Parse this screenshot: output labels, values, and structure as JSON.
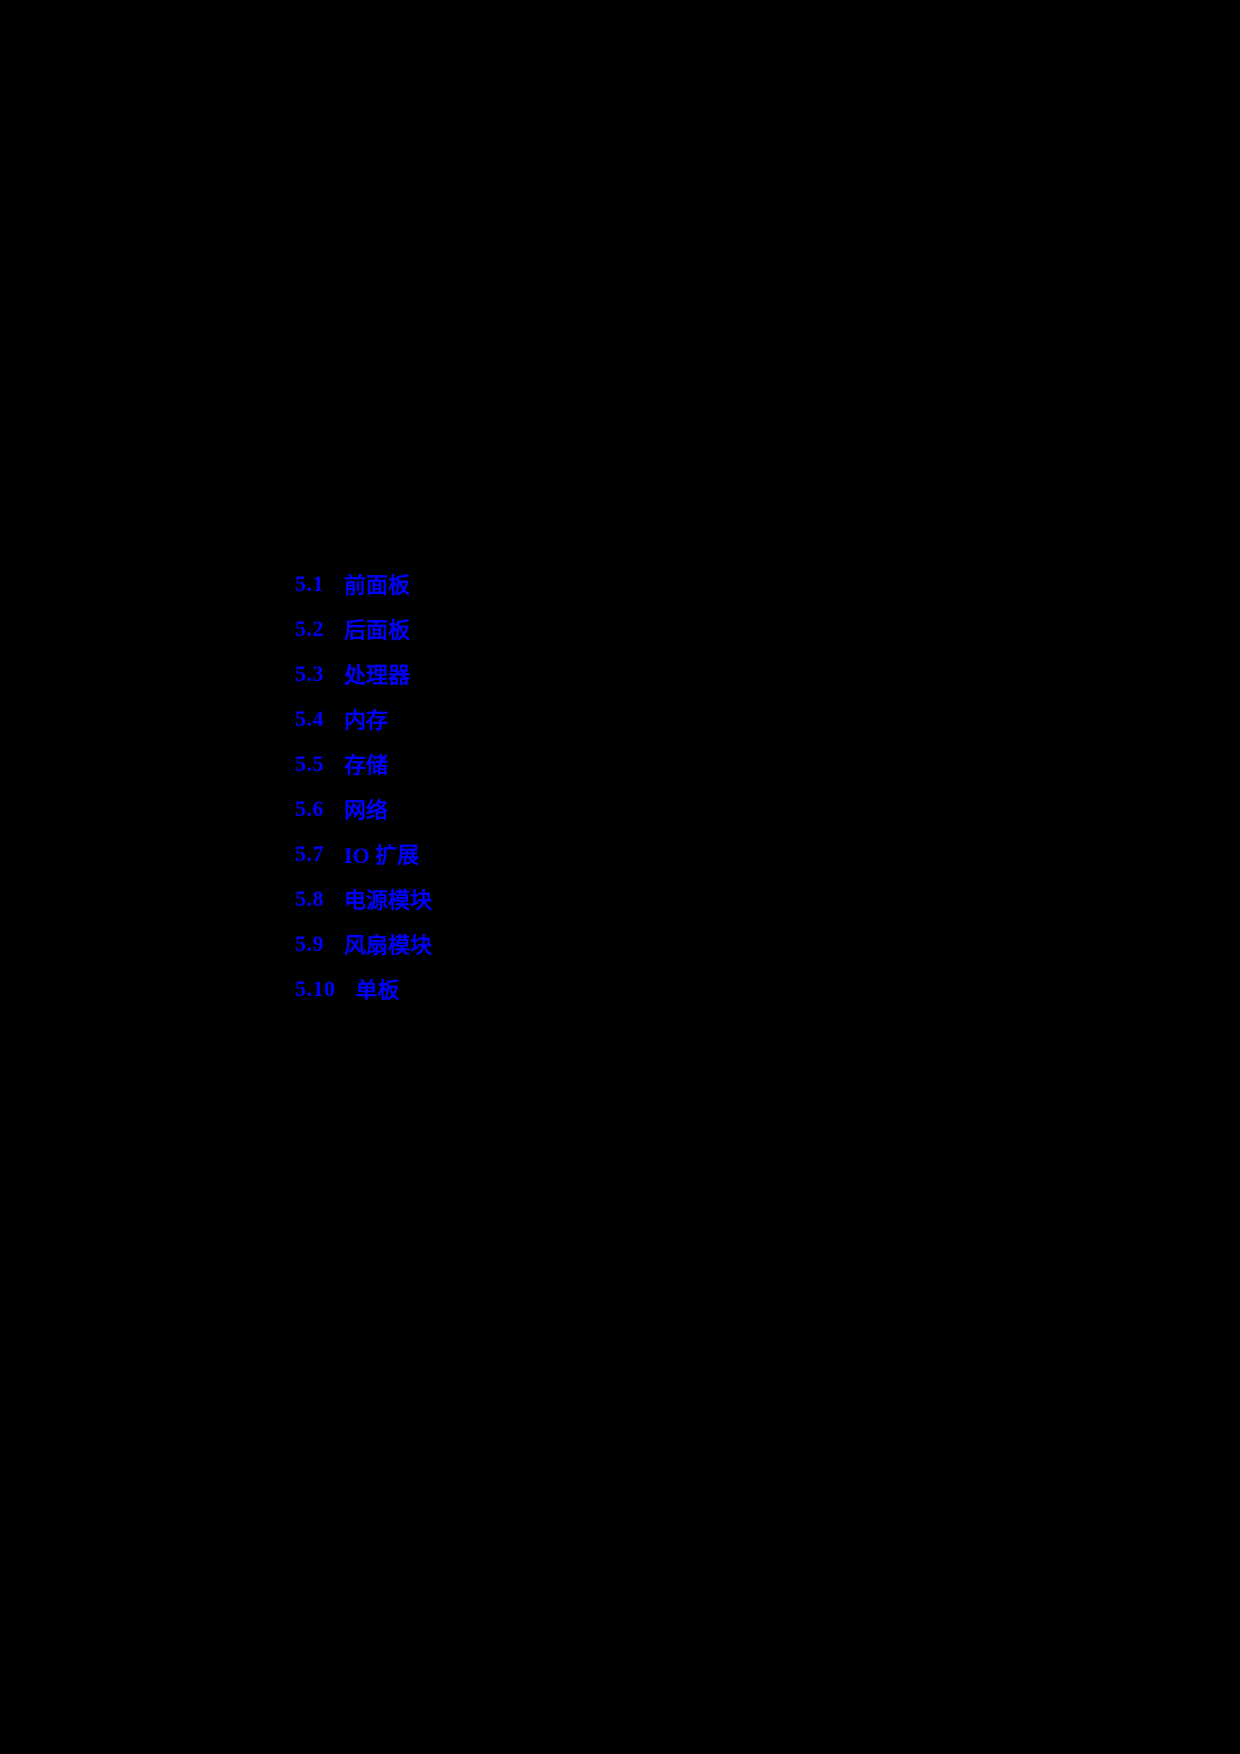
{
  "page": {
    "background_color": "#000000",
    "link_color": "#0000FF"
  },
  "toc": {
    "items": [
      {
        "number": "5.1",
        "title": "前面板"
      },
      {
        "number": "5.2",
        "title": "后面板"
      },
      {
        "number": "5.3",
        "title": "处理器"
      },
      {
        "number": "5.4",
        "title": "内存"
      },
      {
        "number": "5.5",
        "title": "存储"
      },
      {
        "number": "5.6",
        "title": "网络"
      },
      {
        "number": "5.7",
        "title": "IO 扩展"
      },
      {
        "number": "5.8",
        "title": "电源模块"
      },
      {
        "number": "5.9",
        "title": "风扇模块"
      },
      {
        "number": "5.10",
        "title": "单板"
      }
    ]
  }
}
